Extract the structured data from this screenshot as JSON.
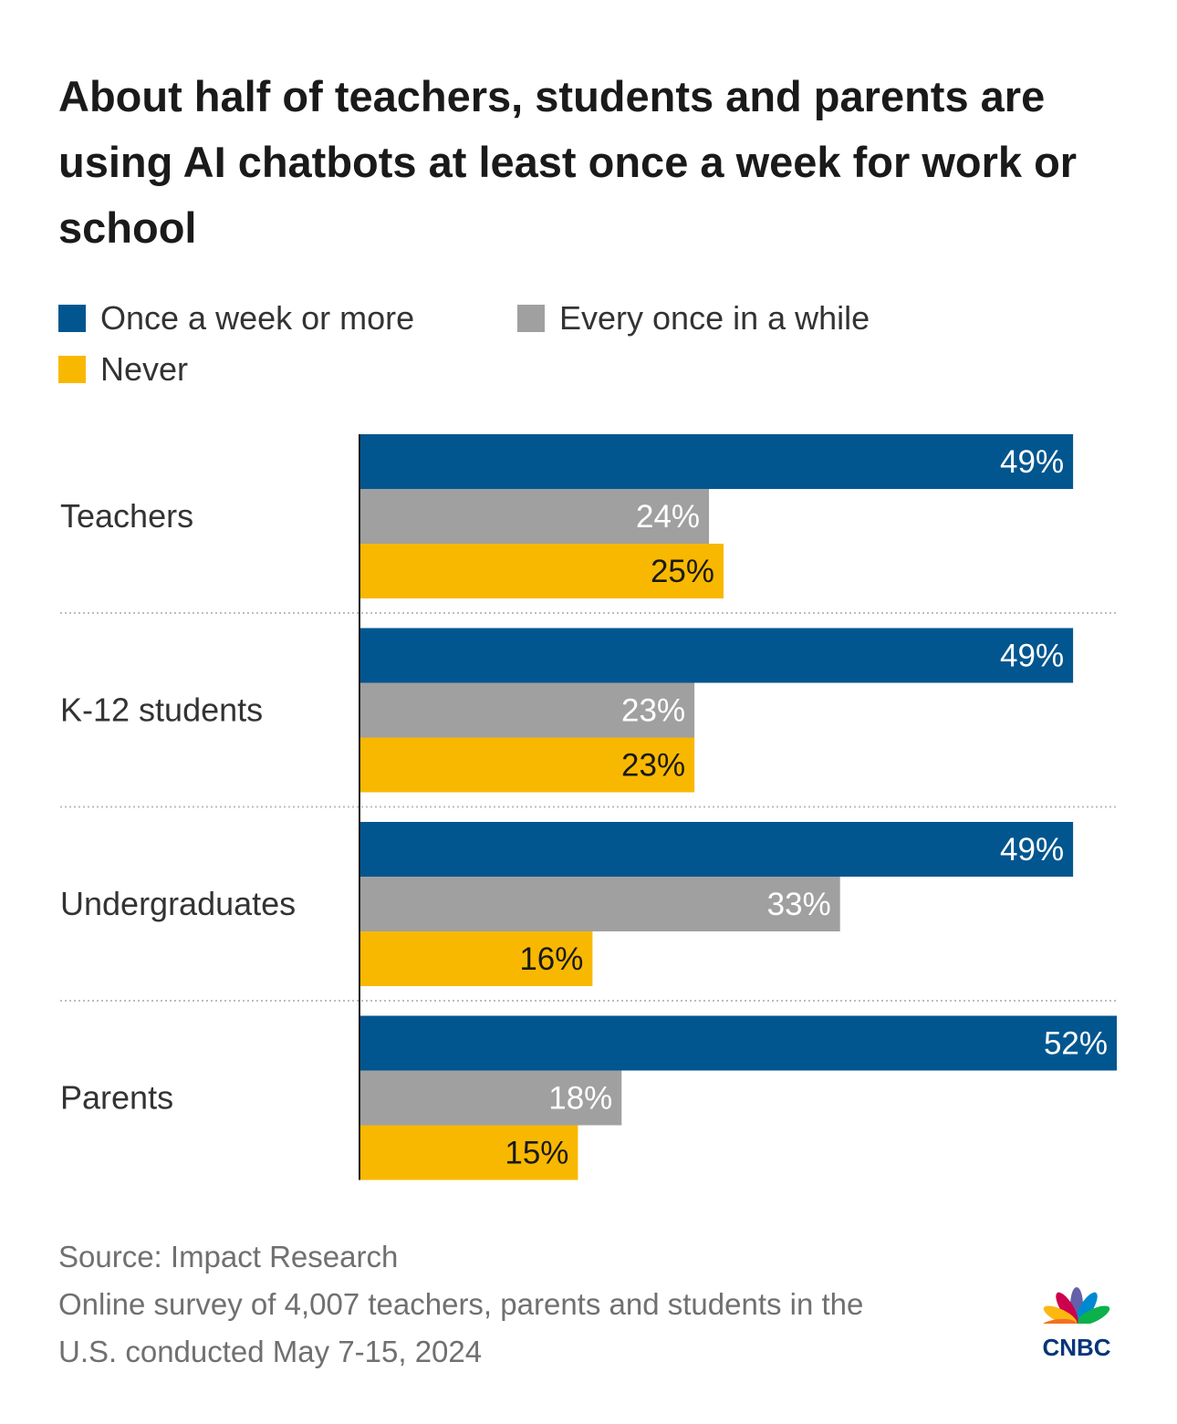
{
  "title": "About half of teachers, students and parents are using AI chatbots at least once a week for work or school",
  "legend": [
    {
      "label": "Once a week or more",
      "color": "#02568F"
    },
    {
      "label": "Every once in a while",
      "color": "#A0A0A0"
    },
    {
      "label": "Never",
      "color": "#F9B800"
    }
  ],
  "chart_data": {
    "type": "bar",
    "orientation": "horizontal",
    "categories": [
      "Teachers",
      "K-12 students",
      "Undergraduates",
      "Parents"
    ],
    "series": [
      {
        "name": "Once a week or more",
        "color": "#02568F",
        "label_color": "#FFFFFF",
        "values": [
          49,
          49,
          49,
          52
        ],
        "labels": [
          "49%",
          "49%",
          "49%",
          "52%"
        ]
      },
      {
        "name": "Every once in a while",
        "color": "#A0A0A0",
        "label_color": "#FFFFFF",
        "values": [
          24,
          23,
          33,
          18
        ],
        "labels": [
          "24%",
          "23%",
          "33%",
          "18%"
        ]
      },
      {
        "name": "Never",
        "color": "#F9B800",
        "label_color": "#1A1A1A",
        "values": [
          25,
          23,
          16,
          15
        ],
        "labels": [
          "25%",
          "23%",
          "16%",
          "15%"
        ]
      }
    ],
    "title": "About half of teachers, students and parents are using AI chatbots at least once a week for work or school",
    "xlabel": "",
    "ylabel": "",
    "xlim": [
      0,
      52
    ],
    "unit": "%"
  },
  "footer": {
    "source": "Source: Impact Research",
    "note_line1": "Online survey of 4,007 teachers, parents and students in the",
    "note_line2": "U.S. conducted May 7-15, 2024"
  },
  "logo": {
    "text": "CNBC",
    "name": "cnbc-peacock-logo"
  }
}
